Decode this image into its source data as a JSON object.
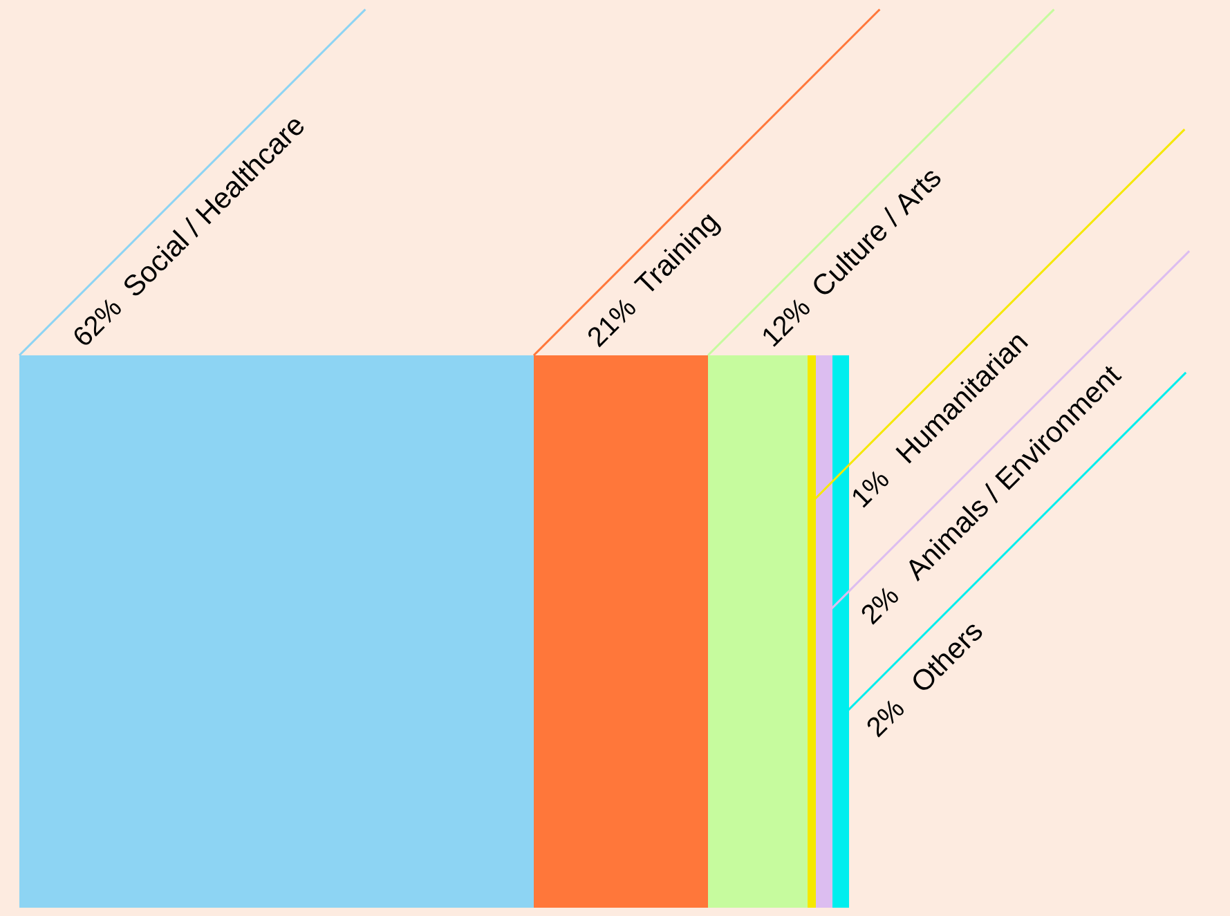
{
  "chart_data": {
    "type": "other",
    "categories": [
      "Social / Healthcare",
      "Training",
      "Culture / Arts",
      "Humanitarian",
      "Animals / Environment",
      "Others"
    ],
    "values": [
      62,
      21,
      12,
      1,
      2,
      2
    ],
    "value_labels": [
      "62%",
      "21%",
      "12%",
      "1%",
      "2%",
      "2%"
    ],
    "colors": [
      "#8dd4f3",
      "#ff773a",
      "#c6fb9e",
      "#f5e800",
      "#dcbdf0",
      "#00eeee"
    ]
  }
}
